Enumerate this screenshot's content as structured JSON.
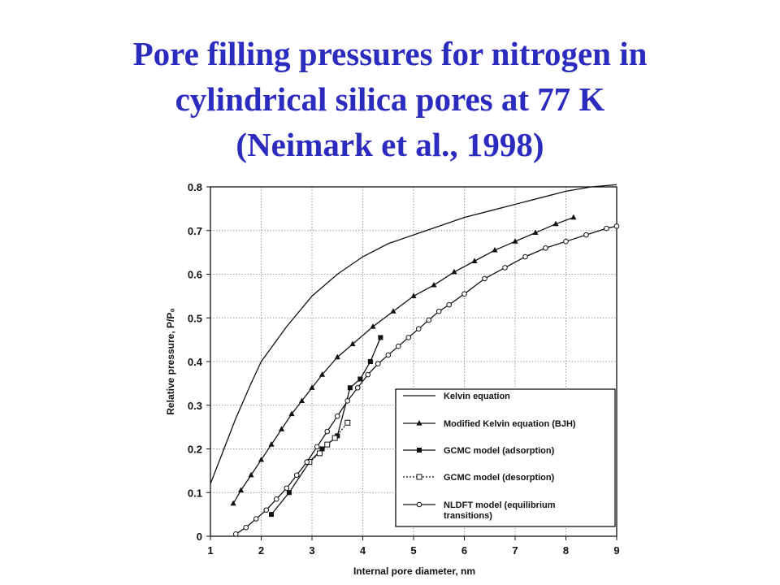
{
  "title_lines": [
    "Pore filling pressures for nitrogen in",
    "cylindrical silica pores at 77 K",
    "(Neimark et al., 1998)"
  ],
  "chart_data": {
    "type": "line",
    "xlabel": "Internal pore diameter, nm",
    "ylabel": "Relative pressure, P/P₀",
    "xlim": [
      1,
      9
    ],
    "ylim": [
      0,
      0.8
    ],
    "xticks": [
      1,
      2,
      3,
      4,
      5,
      6,
      7,
      8,
      9
    ],
    "yticks": [
      0,
      0.1,
      0.2,
      0.3,
      0.4,
      0.5,
      0.6,
      0.7,
      0.8
    ],
    "ytick_labels": [
      "0",
      "0.1",
      "0.2",
      "0.3",
      "0.4",
      "0.5",
      "0.6",
      "0.7",
      "0.8"
    ],
    "grid": true,
    "legend_position": "bottom-right",
    "series": [
      {
        "name": "Kelvin equation",
        "marker": "none",
        "line": "solid",
        "x": [
          1.0,
          1.2,
          1.5,
          1.8,
          2.0,
          2.5,
          3.0,
          3.5,
          4.0,
          4.5,
          5.0,
          5.5,
          6.0,
          6.5,
          7.0,
          7.5,
          8.0,
          8.5,
          9.0
        ],
        "y": [
          0.12,
          0.18,
          0.27,
          0.35,
          0.4,
          0.48,
          0.55,
          0.6,
          0.64,
          0.67,
          0.69,
          0.71,
          0.73,
          0.745,
          0.76,
          0.775,
          0.79,
          0.8,
          0.805
        ]
      },
      {
        "name": "Modified Kelvin equation (BJH)",
        "marker": "triangle",
        "line": "solid",
        "x": [
          1.45,
          1.6,
          1.8,
          2.0,
          2.2,
          2.4,
          2.6,
          2.8,
          3.0,
          3.2,
          3.5,
          3.8,
          4.2,
          4.6,
          5.0,
          5.4,
          5.8,
          6.2,
          6.6,
          7.0,
          7.4,
          7.8,
          8.15
        ],
        "y": [
          0.075,
          0.105,
          0.14,
          0.175,
          0.21,
          0.245,
          0.28,
          0.31,
          0.34,
          0.37,
          0.41,
          0.44,
          0.48,
          0.515,
          0.55,
          0.575,
          0.605,
          0.63,
          0.655,
          0.675,
          0.695,
          0.715,
          0.73
        ]
      },
      {
        "name": "GCMC model (adsorption)",
        "marker": "filled-square",
        "line": "solid",
        "x": [
          2.2,
          2.55,
          2.95,
          3.2,
          3.5,
          3.75,
          3.95,
          4.15,
          4.35
        ],
        "y": [
          0.05,
          0.1,
          0.17,
          0.2,
          0.23,
          0.34,
          0.36,
          0.4,
          0.455
        ]
      },
      {
        "name": "GCMC model (desorption)",
        "marker": "open-square",
        "line": "dotted",
        "x": [
          2.95,
          3.15,
          3.3,
          3.45,
          3.7
        ],
        "y": [
          0.17,
          0.19,
          0.21,
          0.225,
          0.26
        ]
      },
      {
        "name": "NLDFT model (equilibrium transitions)",
        "marker": "open-circle",
        "line": "solid",
        "x": [
          1.5,
          1.7,
          1.9,
          2.1,
          2.3,
          2.5,
          2.7,
          2.9,
          3.1,
          3.3,
          3.5,
          3.7,
          3.9,
          4.1,
          4.3,
          4.5,
          4.7,
          4.9,
          5.1,
          5.3,
          5.5,
          5.7,
          6.0,
          6.4,
          6.8,
          7.2,
          7.6,
          8.0,
          8.4,
          8.8,
          9.0
        ],
        "y": [
          0.005,
          0.02,
          0.04,
          0.06,
          0.085,
          0.11,
          0.14,
          0.17,
          0.205,
          0.24,
          0.275,
          0.31,
          0.34,
          0.37,
          0.395,
          0.415,
          0.435,
          0.455,
          0.475,
          0.495,
          0.515,
          0.53,
          0.555,
          0.59,
          0.615,
          0.64,
          0.66,
          0.675,
          0.69,
          0.705,
          0.71
        ]
      }
    ],
    "legend_lines": [
      [
        "Kelvin equation"
      ],
      [
        "Modified Kelvin equation (BJH)"
      ],
      [
        "GCMC model (adsorption)"
      ],
      [
        "GCMC model (desorption)"
      ],
      [
        "NLDFT model (equilibrium",
        "transitions)"
      ]
    ],
    "colors": {
      "title": "#2b2bbf",
      "ink": "#111111",
      "grid": "#9a9a9a"
    }
  }
}
